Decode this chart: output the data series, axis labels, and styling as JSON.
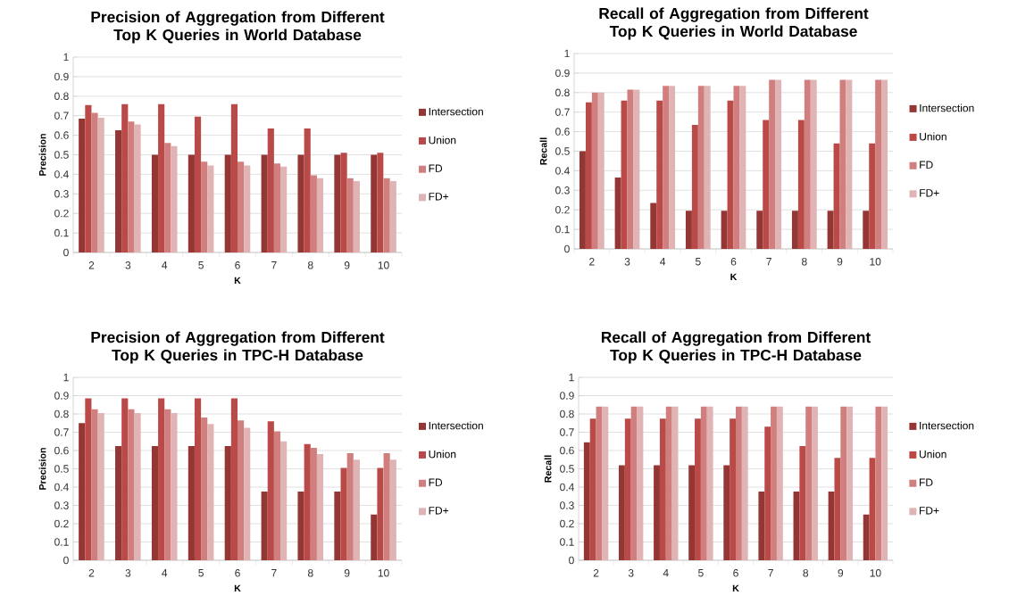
{
  "chart_data": [
    {
      "type": "bar",
      "title": "Precision of Aggregation from Different Top K Queries in World Database",
      "xlabel": "K",
      "ylabel": "Precision",
      "categories": [
        "2",
        "3",
        "4",
        "5",
        "6",
        "7",
        "8",
        "9",
        "10"
      ],
      "ylim": [
        0,
        1
      ],
      "yticks": [
        0,
        0.1,
        0.2,
        0.3,
        0.4,
        0.5,
        0.6,
        0.7,
        0.8,
        0.9,
        1
      ],
      "grid": "y",
      "legend": "right",
      "series": [
        {
          "name": "Intersection",
          "color": "#943634",
          "values": [
            0.685,
            0.625,
            0.5,
            0.5,
            0.5,
            0.5,
            0.5,
            0.5,
            0.5
          ]
        },
        {
          "name": "Union",
          "color": "#b94a48",
          "values": [
            0.755,
            0.76,
            0.76,
            0.695,
            0.76,
            0.635,
            0.635,
            0.51,
            0.51
          ]
        },
        {
          "name": "FD",
          "color": "#d07f7e",
          "values": [
            0.715,
            0.67,
            0.56,
            0.465,
            0.465,
            0.455,
            0.395,
            0.38,
            0.38
          ]
        },
        {
          "name": "FD+",
          "color": "#e0b4b4",
          "values": [
            0.69,
            0.655,
            0.545,
            0.445,
            0.445,
            0.44,
            0.38,
            0.365,
            0.365
          ]
        }
      ]
    },
    {
      "type": "bar",
      "title": "Recall of Aggregation from Different Top K Queries in World Database",
      "xlabel": "K",
      "ylabel": "Recall",
      "categories": [
        "2",
        "3",
        "4",
        "5",
        "6",
        "7",
        "8",
        "9",
        "10"
      ],
      "ylim": [
        0,
        1
      ],
      "yticks": [
        0,
        0.1,
        0.2,
        0.3,
        0.4,
        0.5,
        0.6,
        0.7,
        0.8,
        0.9,
        1
      ],
      "grid": "y",
      "legend": "right",
      "series": [
        {
          "name": "Intersection",
          "color": "#943634",
          "values": [
            0.5,
            0.365,
            0.235,
            0.195,
            0.195,
            0.195,
            0.195,
            0.195,
            0.195
          ]
        },
        {
          "name": "Union",
          "color": "#b94a48",
          "values": [
            0.75,
            0.76,
            0.76,
            0.635,
            0.76,
            0.66,
            0.66,
            0.54,
            0.54
          ]
        },
        {
          "name": "FD",
          "color": "#d07f7e",
          "values": [
            0.8,
            0.815,
            0.835,
            0.835,
            0.835,
            0.865,
            0.865,
            0.865,
            0.865
          ]
        },
        {
          "name": "FD+",
          "color": "#e0b4b4",
          "values": [
            0.8,
            0.815,
            0.835,
            0.835,
            0.835,
            0.865,
            0.865,
            0.865,
            0.865
          ]
        }
      ]
    },
    {
      "type": "bar",
      "title": "Precision of Aggregation from Different Top K Queries in TPC-H Database",
      "xlabel": "K",
      "ylabel": "Precision",
      "categories": [
        "2",
        "3",
        "4",
        "5",
        "6",
        "7",
        "8",
        "9",
        "10"
      ],
      "ylim": [
        0,
        1
      ],
      "yticks": [
        0,
        0.1,
        0.2,
        0.3,
        0.4,
        0.5,
        0.6,
        0.7,
        0.8,
        0.9,
        1
      ],
      "grid": "y",
      "legend": "right",
      "series": [
        {
          "name": "Intersection",
          "color": "#943634",
          "values": [
            0.75,
            0.625,
            0.625,
            0.625,
            0.625,
            0.375,
            0.375,
            0.375,
            0.25
          ]
        },
        {
          "name": "Union",
          "color": "#b94a48",
          "values": [
            0.885,
            0.885,
            0.885,
            0.885,
            0.885,
            0.76,
            0.635,
            0.505,
            0.505
          ]
        },
        {
          "name": "FD",
          "color": "#d07f7e",
          "values": [
            0.825,
            0.825,
            0.825,
            0.78,
            0.765,
            0.705,
            0.615,
            0.585,
            0.585
          ]
        },
        {
          "name": "FD+",
          "color": "#e0b4b4",
          "values": [
            0.805,
            0.805,
            0.805,
            0.745,
            0.725,
            0.65,
            0.58,
            0.55,
            0.55
          ]
        }
      ]
    },
    {
      "type": "bar",
      "title": "Recall of Aggregation from Different Top K Queries in TPC-H Database",
      "xlabel": "K",
      "ylabel": "Recall",
      "categories": [
        "2",
        "3",
        "4",
        "5",
        "6",
        "7",
        "8",
        "9",
        "10"
      ],
      "ylim": [
        0,
        1
      ],
      "yticks": [
        0,
        0.1,
        0.2,
        0.3,
        0.4,
        0.5,
        0.6,
        0.7,
        0.8,
        0.9,
        1
      ],
      "grid": "y",
      "legend": "right",
      "series": [
        {
          "name": "Intersection",
          "color": "#943634",
          "values": [
            0.645,
            0.52,
            0.52,
            0.52,
            0.52,
            0.375,
            0.375,
            0.375,
            0.25
          ]
        },
        {
          "name": "Union",
          "color": "#b94a48",
          "values": [
            0.775,
            0.775,
            0.775,
            0.775,
            0.775,
            0.73,
            0.625,
            0.56,
            0.56
          ]
        },
        {
          "name": "FD",
          "color": "#d07f7e",
          "values": [
            0.84,
            0.84,
            0.84,
            0.84,
            0.84,
            0.84,
            0.84,
            0.84,
            0.84
          ]
        },
        {
          "name": "FD+",
          "color": "#e0b4b4",
          "values": [
            0.84,
            0.84,
            0.84,
            0.84,
            0.84,
            0.84,
            0.84,
            0.84,
            0.84
          ]
        }
      ]
    }
  ]
}
